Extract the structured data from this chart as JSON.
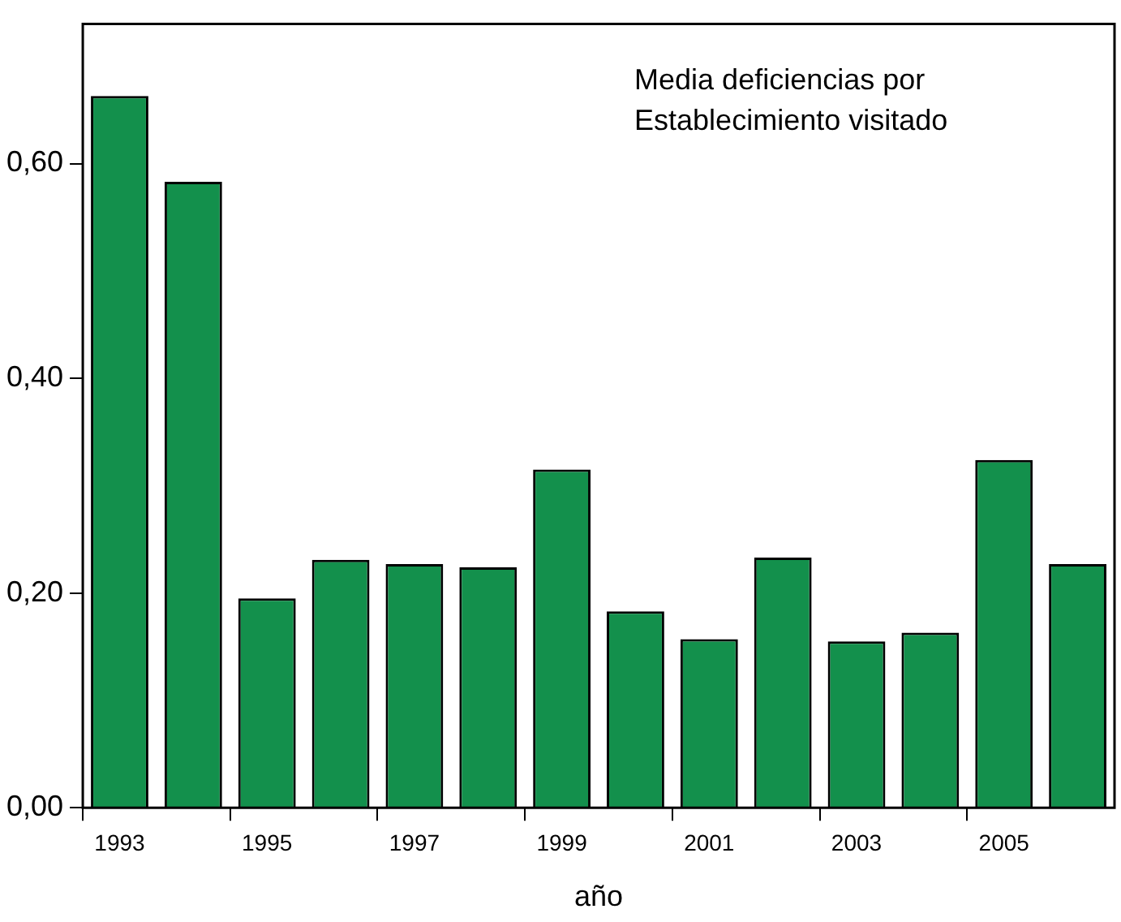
{
  "chart_data": {
    "type": "bar",
    "xlabel": "año",
    "categories": [
      "1993",
      null,
      "1995",
      null,
      "1997",
      null,
      "1999",
      null,
      "2001",
      null,
      "2003",
      null,
      "2005",
      null
    ],
    "values": [
      0.663,
      0.583,
      0.195,
      0.231,
      0.227,
      0.224,
      0.315,
      0.183,
      0.157,
      0.233,
      0.155,
      0.163,
      0.324,
      0.227
    ],
    "color": "#13904c",
    "ylim": [
      0,
      0.73
    ],
    "yticks": [
      {
        "value": 0,
        "label": "0,00"
      },
      {
        "value": 0.2,
        "label": "0,20"
      },
      {
        "value": 0.4,
        "label": "0,40"
      },
      {
        "value": 0.6,
        "label": "0,60"
      }
    ],
    "annotations": [
      "Media deficiencias por\nEstablecimiento visitado"
    ],
    "grid": false,
    "legend": false
  }
}
